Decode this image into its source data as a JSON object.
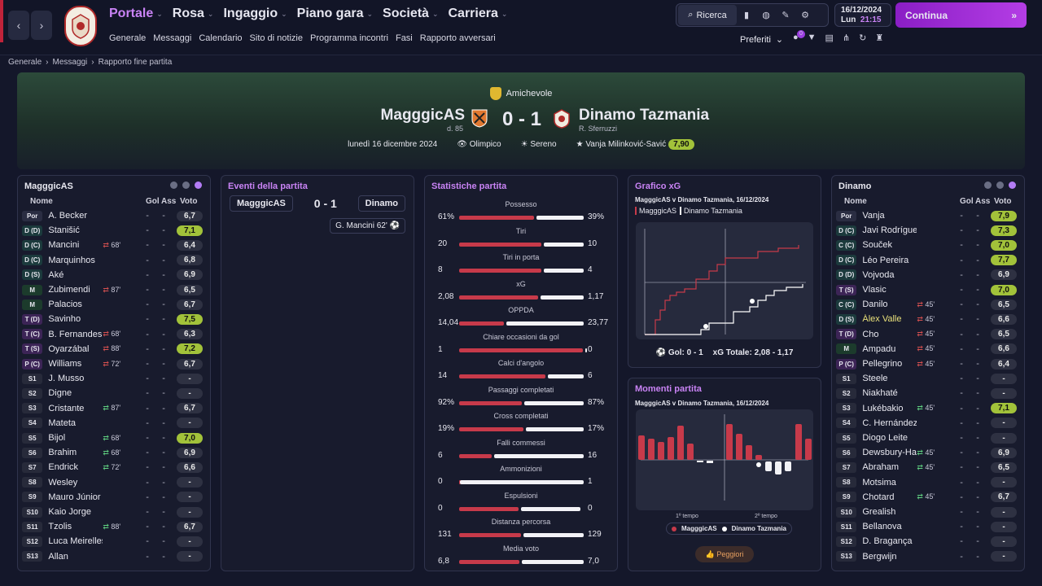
{
  "nav": {
    "main": [
      {
        "label": "Portale",
        "active": true
      },
      {
        "label": "Rosa"
      },
      {
        "label": "Ingaggio"
      },
      {
        "label": "Piano gara"
      },
      {
        "label": "Società"
      },
      {
        "label": "Carriera"
      }
    ],
    "sub": [
      "Generale",
      "Messaggi",
      "Calendario",
      "Sito di notizie",
      "Programma incontri",
      "Fasi",
      "Rapporto avversari"
    ],
    "search": "Ricerca",
    "date": "16/12/2024",
    "day": "Lun",
    "time": "21:15",
    "continue": "Continua",
    "favorites": "Preferiti",
    "notif": "0"
  },
  "breadcrumb": [
    "Generale",
    "Messaggi",
    "Rapporto fine partita"
  ],
  "match": {
    "competition": "Amichevole",
    "home": "MagggicAS",
    "home_manager": "d. 85",
    "score": "0 - 1",
    "away": "Dinamo Tazmania",
    "away_manager": "R. Sferruzzi",
    "date": "lunedì 16 dicembre 2024",
    "stadium": "Olimpico",
    "weather": "Sereno",
    "motm": "Vanja Milinković-Savić",
    "motm_rating": "7,90"
  },
  "home_panel": {
    "title": "MagggicAS",
    "cols": [
      "Nome",
      "Gol",
      "Ass",
      "Voto"
    ],
    "players": [
      [
        "Por",
        "A. Becker",
        "",
        "-",
        "-",
        "6,7"
      ],
      [
        "D (D)",
        "Stanišić",
        "",
        "-",
        "-",
        "7,1"
      ],
      [
        "D (C)",
        "Mancini",
        "68'",
        "-",
        "-",
        "6,4"
      ],
      [
        "D (C)",
        "Marquinhos",
        "",
        "-",
        "-",
        "6,8"
      ],
      [
        "D (S)",
        "Aké",
        "",
        "-",
        "-",
        "6,9"
      ],
      [
        "M",
        "Zubimendi",
        "87'",
        "-",
        "-",
        "6,5"
      ],
      [
        "M",
        "Palacios",
        "",
        "-",
        "-",
        "6,7"
      ],
      [
        "T (D)",
        "Savinho",
        "",
        "-",
        "-",
        "7,5"
      ],
      [
        "T (C)",
        "B. Fernandes",
        "68'",
        "-",
        "-",
        "6,3"
      ],
      [
        "T (S)",
        "Oyarzábal",
        "88'",
        "-",
        "-",
        "7,2"
      ],
      [
        "P (C)",
        "Williams",
        "72'",
        "-",
        "-",
        "6,7"
      ],
      [
        "S1",
        "J. Musso",
        "",
        "-",
        "-",
        "-"
      ],
      [
        "S2",
        "Digne",
        "",
        "-",
        "-",
        "-"
      ],
      [
        "S3",
        "Cristante",
        "87'",
        "-",
        "-",
        "6,7"
      ],
      [
        "S4",
        "Mateta",
        "",
        "-",
        "-",
        "-"
      ],
      [
        "S5",
        "Bijol",
        "68'",
        "-",
        "-",
        "7,0"
      ],
      [
        "S6",
        "Brahim",
        "68'",
        "-",
        "-",
        "6,9"
      ],
      [
        "S7",
        "Endrick",
        "72'",
        "-",
        "-",
        "6,6"
      ],
      [
        "S8",
        "Wesley",
        "",
        "-",
        "-",
        "-"
      ],
      [
        "S9",
        "Mauro Júnior",
        "",
        "-",
        "-",
        "-"
      ],
      [
        "S10",
        "Kaio Jorge",
        "",
        "-",
        "-",
        "-"
      ],
      [
        "S11",
        "Tzolis",
        "88'",
        "-",
        "-",
        "6,7"
      ],
      [
        "S12",
        "Luca Meirelles",
        "",
        "-",
        "-",
        "-"
      ],
      [
        "S13",
        "Allan",
        "",
        "-",
        "-",
        "-"
      ]
    ]
  },
  "away_panel": {
    "title": "Dinamo",
    "cols": [
      "Nome",
      "Gol",
      "Ass",
      "Voto"
    ],
    "players": [
      [
        "Por",
        "Vanja",
        "",
        "-",
        "-",
        "7,9"
      ],
      [
        "D (C)",
        "Javi Rodríguez",
        "",
        "-",
        "-",
        "7,3"
      ],
      [
        "C (C)",
        "Souček",
        "",
        "-",
        "-",
        "7,0"
      ],
      [
        "D (C)",
        "Léo Pereira",
        "",
        "-",
        "-",
        "7,7"
      ],
      [
        "D (D)",
        "Vojvoda",
        "",
        "-",
        "-",
        "6,9"
      ],
      [
        "T (S)",
        "Vlasic",
        "",
        "-",
        "-",
        "7,0"
      ],
      [
        "C (C)",
        "Danilo",
        "45'",
        "-",
        "-",
        "6,5"
      ],
      [
        "D (S)",
        "Álex Valle",
        "45'",
        "-",
        "-",
        "6,6"
      ],
      [
        "T (D)",
        "Cho",
        "45'",
        "-",
        "-",
        "6,5"
      ],
      [
        "M",
        "Ampadu",
        "45'",
        "-",
        "-",
        "6,6"
      ],
      [
        "P (C)",
        "Pellegrino",
        "45'",
        "-",
        "-",
        "6,4"
      ],
      [
        "S1",
        "Steele",
        "",
        "-",
        "-",
        "-"
      ],
      [
        "S2",
        "Niakhaté",
        "",
        "-",
        "-",
        "-"
      ],
      [
        "S3",
        "Lukébakio",
        "45'",
        "-",
        "-",
        "7,1"
      ],
      [
        "S4",
        "C. Hernández",
        "",
        "-",
        "-",
        "-"
      ],
      [
        "S5",
        "Diogo Leite",
        "",
        "-",
        "-",
        "-"
      ],
      [
        "S6",
        "Dewsbury-Hall",
        "45'",
        "-",
        "-",
        "6,9"
      ],
      [
        "S7",
        "Abraham",
        "45'",
        "-",
        "-",
        "6,5"
      ],
      [
        "S8",
        "Motsima",
        "",
        "-",
        "-",
        "-"
      ],
      [
        "S9",
        "Chotard",
        "45'",
        "-",
        "-",
        "6,7"
      ],
      [
        "S10",
        "Grealish",
        "",
        "-",
        "-",
        "-"
      ],
      [
        "S11",
        "Bellanova",
        "",
        "-",
        "-",
        "-"
      ],
      [
        "S12",
        "D. Bragança",
        "",
        "-",
        "-",
        "-"
      ],
      [
        "S13",
        "Bergwijn",
        "",
        "-",
        "-",
        "-"
      ]
    ]
  },
  "events": {
    "title": "Eventi della partita",
    "home": "MagggicAS",
    "score": "0 - 1",
    "away": "Dinamo",
    "items": [
      "G. Mancini 62'"
    ]
  },
  "stats": {
    "title": "Statistiche partita",
    "rows": [
      [
        "Possesso",
        "61%",
        "39%",
        61,
        39
      ],
      [
        "Tiri",
        "20",
        "10",
        20,
        10
      ],
      [
        "Tiri in porta",
        "8",
        "4",
        8,
        4
      ],
      [
        "xG",
        "2,08",
        "1,17",
        2.08,
        1.17
      ],
      [
        "OPPDA",
        "14,04",
        "23,77",
        14.04,
        23.77
      ],
      [
        "Chiare occasioni da gol",
        "1",
        "0",
        1,
        0
      ],
      [
        "Calci d'angolo",
        "14",
        "6",
        14,
        6
      ],
      [
        "Passaggi completati",
        "92%",
        "87%",
        92,
        87
      ],
      [
        "Cross completati",
        "19%",
        "17%",
        19,
        17
      ],
      [
        "Falli commessi",
        "6",
        "16",
        6,
        16
      ],
      [
        "Ammonizioni",
        "0",
        "1",
        0,
        1
      ],
      [
        "Espulsioni",
        "0",
        "0",
        0,
        0
      ],
      [
        "Distanza percorsa",
        "131",
        "129",
        131,
        129
      ],
      [
        "Media voto",
        "6,8",
        "7,0",
        6.8,
        7.0
      ]
    ]
  },
  "xg": {
    "title": "Grafico xG",
    "subtitle": "MagggicAS v Dinamo Tazmania, 16/12/2024",
    "legend_home": "MagggicAS",
    "legend_away": "Dinamo Tazmania",
    "goals_label": "Gol: 0 - 1",
    "xg_label": "xG Totale: 2,08 - 1,17"
  },
  "momentum": {
    "title": "Momenti partita",
    "subtitle": "MagggicAS v Dinamo Tazmania, 16/12/2024",
    "half1": "1º tempo",
    "half2": "2º tempo",
    "legend_home": "MagggicAS",
    "legend_away": "Dinamo Tazmania",
    "worst": "Peggiori"
  },
  "colors": {
    "accent": "#c983f5",
    "home": "#c73a4a",
    "away": "#f2f2f6",
    "rating_hi": "#a2c23a"
  }
}
